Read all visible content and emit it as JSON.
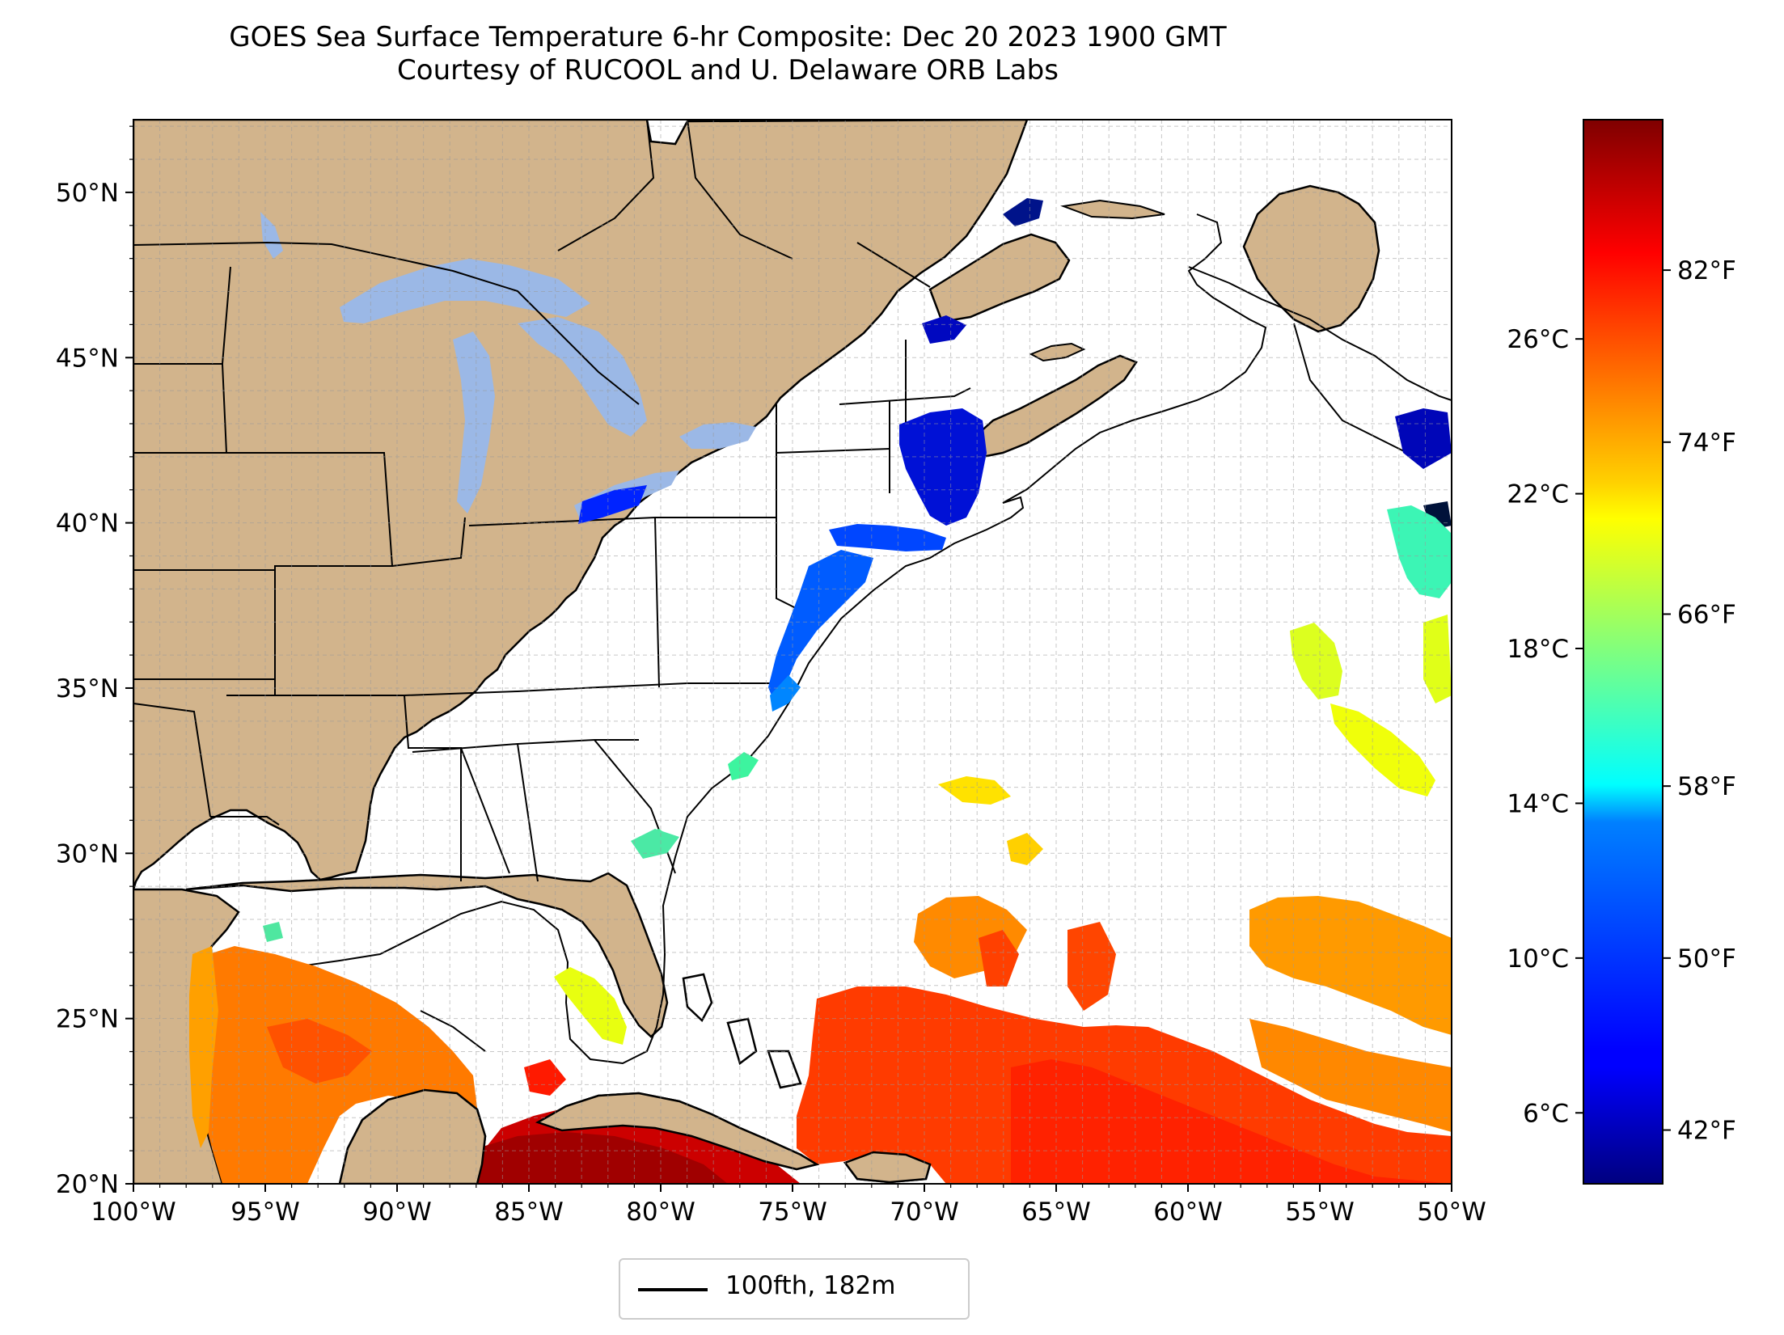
{
  "title": {
    "line1": "GOES Sea Surface Temperature 6-hr Composite: Dec 20 2023 1900 GMT",
    "line2": "Courtesy of RUCOOL and U. Delaware ORB Labs"
  },
  "map": {
    "lon_range": [
      -100,
      -50
    ],
    "lat_range": [
      20,
      52.2
    ],
    "x_ticks": [
      {
        "lon": -100,
        "label": "100°W"
      },
      {
        "lon": -95,
        "label": "95°W"
      },
      {
        "lon": -90,
        "label": "90°W"
      },
      {
        "lon": -85,
        "label": "85°W"
      },
      {
        "lon": -80,
        "label": "80°W"
      },
      {
        "lon": -75,
        "label": "75°W"
      },
      {
        "lon": -70,
        "label": "70°W"
      },
      {
        "lon": -65,
        "label": "65°W"
      },
      {
        "lon": -60,
        "label": "60°W"
      },
      {
        "lon": -55,
        "label": "55°W"
      },
      {
        "lon": -50,
        "label": "50°W"
      }
    ],
    "y_ticks": [
      {
        "lat": 20,
        "label": "20°N"
      },
      {
        "lat": 25,
        "label": "25°N"
      },
      {
        "lat": 30,
        "label": "30°N"
      },
      {
        "lat": 35,
        "label": "35°N"
      },
      {
        "lat": 40,
        "label": "40°N"
      },
      {
        "lat": 45,
        "label": "45°N"
      },
      {
        "lat": 50,
        "label": "50°N"
      }
    ],
    "grid": true,
    "land_color": "#d2b48c",
    "lake_color": "#9bb8e6",
    "ocean_color": "#ffffff"
  },
  "colorbar": {
    "colormap": "jet",
    "range_f": [
      39.5,
      89
    ],
    "fahrenheit_ticks": [
      {
        "value": 42,
        "label": "42°F"
      },
      {
        "value": 50,
        "label": "50°F"
      },
      {
        "value": 58,
        "label": "58°F"
      },
      {
        "value": 66,
        "label": "66°F"
      },
      {
        "value": 74,
        "label": "74°F"
      },
      {
        "value": 82,
        "label": "82°F"
      }
    ],
    "celsius_ticks": [
      {
        "value": 6,
        "label": "6°C"
      },
      {
        "value": 10,
        "label": "10°C"
      },
      {
        "value": 14,
        "label": "14°C"
      },
      {
        "value": 18,
        "label": "18°C"
      },
      {
        "value": 22,
        "label": "22°C"
      },
      {
        "value": 26,
        "label": "26°C"
      }
    ]
  },
  "legend": {
    "label": "100fth, 182m"
  }
}
